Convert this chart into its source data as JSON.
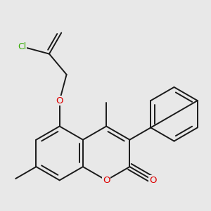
{
  "bg_color": "#e8e8e8",
  "bond_color": "#1a1a1a",
  "bond_width": 1.4,
  "atom_colors": {
    "O": "#dd0000",
    "Cl": "#33aa00"
  },
  "font_size_O": 9.5,
  "font_size_Cl": 9.0,
  "dpi": 100,
  "figsize": [
    3.0,
    3.0
  ]
}
